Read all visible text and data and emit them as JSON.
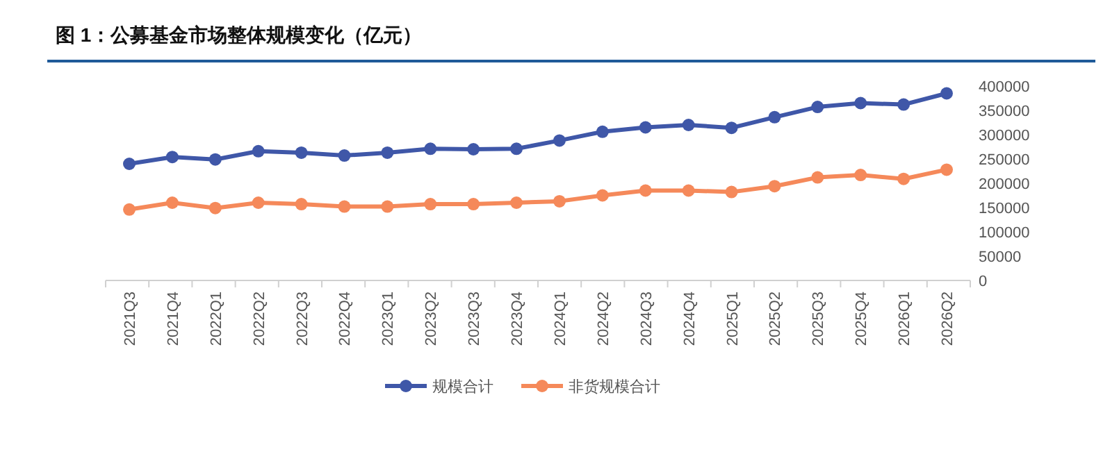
{
  "chart_data": {
    "type": "line",
    "title": "图 1：公募基金市场整体规模变化（亿元）",
    "categories": [
      "2021Q3",
      "2021Q4",
      "2022Q1",
      "2022Q2",
      "2022Q3",
      "2022Q4",
      "2023Q1",
      "2023Q2",
      "2023Q3",
      "2023Q4",
      "2024Q1",
      "2024Q2",
      "2024Q3",
      "2024Q4",
      "2025Q1",
      "2025Q2",
      "2025Q3",
      "2025Q4",
      "2026Q1",
      "2026Q2"
    ],
    "series": [
      {
        "name": "规模合计",
        "color": "#3f57a8",
        "values": [
          240000,
          254000,
          249000,
          266000,
          263000,
          257000,
          263000,
          271000,
          270000,
          271000,
          288000,
          306000,
          315000,
          320000,
          314000,
          336000,
          357000,
          365000,
          362000,
          385000
        ]
      },
      {
        "name": "非货规模合计",
        "color": "#f5895a",
        "values": [
          146000,
          160000,
          149000,
          160000,
          157000,
          152000,
          152000,
          157000,
          157000,
          160000,
          163000,
          175000,
          185000,
          185000,
          182000,
          194000,
          212000,
          217000,
          209000,
          228000
        ]
      }
    ],
    "ylim": [
      0,
      400000
    ],
    "yticks": [
      0,
      50000,
      100000,
      150000,
      200000,
      250000,
      300000,
      350000,
      400000
    ],
    "grid": false,
    "legend": "bottom",
    "marker": "circle",
    "line_style": "solid"
  }
}
